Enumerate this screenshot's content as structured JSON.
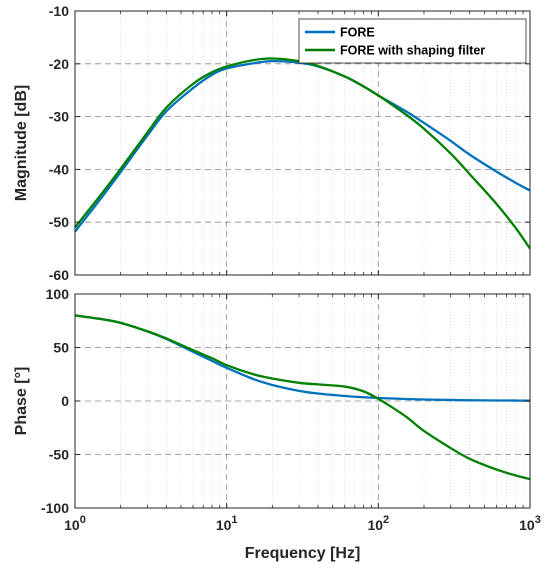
{
  "chart_data": {
    "type": "line",
    "xscale": "log",
    "xlabel": "Frequency [Hz]",
    "xlim": [
      1,
      1000
    ],
    "x_tick_labels": [
      {
        "base": "10",
        "exp": "0"
      },
      {
        "base": "10",
        "exp": "1"
      },
      {
        "base": "10",
        "exp": "2"
      },
      {
        "base": "10",
        "exp": "3"
      }
    ],
    "grid": true,
    "colors": {
      "fore": "#0072BD",
      "fore_filter": "#008000"
    },
    "legend": {
      "placement": "top-right",
      "entries": [
        "FORE",
        "FORE with shaping filter"
      ]
    },
    "panels": [
      {
        "id": "magnitude",
        "ylabel": "Magnitude [dB]",
        "ylim": [
          -60,
          -10
        ],
        "y_ticks": [
          -60,
          -50,
          -40,
          -30,
          -20,
          -10
        ],
        "series": [
          {
            "name": "FORE",
            "x": [
              1,
              1.5,
              2,
              3,
              4,
              6,
              8,
              10,
              15,
              20,
              30,
              40,
              60,
              80,
              100,
              150,
              200,
              300,
              400,
              600,
              800,
              1000
            ],
            "y": [
              -51.8,
              -45.3,
              -40.5,
              -33.6,
              -29.0,
              -24.6,
              -22.1,
              -20.9,
              -19.9,
              -19.5,
              -19.8,
              -20.5,
              -22.4,
              -24.3,
              -26.0,
              -28.9,
              -31.2,
              -34.6,
              -37.2,
              -40.4,
              -42.5,
              -44.0
            ]
          },
          {
            "name": "FORE with shaping filter",
            "x": [
              1,
              1.5,
              2,
              3,
              4,
              6,
              8,
              10,
              15,
              20,
              30,
              40,
              60,
              80,
              100,
              150,
              200,
              300,
              400,
              600,
              800,
              1000
            ],
            "y": [
              -51.0,
              -44.6,
              -39.9,
              -33.0,
              -28.3,
              -23.8,
              -21.6,
              -20.5,
              -19.3,
              -19.0,
              -19.5,
              -20.4,
              -22.4,
              -24.3,
              -26.0,
              -29.5,
              -32.3,
              -37.0,
              -40.9,
              -46.5,
              -51.0,
              -55.0
            ]
          }
        ]
      },
      {
        "id": "phase",
        "ylabel": "Phase [°]",
        "ylim": [
          -100,
          100
        ],
        "y_ticks": [
          -100,
          -50,
          0,
          50,
          100
        ],
        "series": [
          {
            "name": "FORE",
            "x": [
              1,
              1.5,
              2,
              3,
              4,
              6,
              8,
              10,
              15,
              20,
              30,
              40,
              60,
              80,
              100,
              150,
              200,
              300,
              400,
              600,
              800,
              1000
            ],
            "y": [
              80.0,
              76.5,
              73.0,
              65.0,
              58.0,
              46.0,
              37.5,
              31.0,
              20.5,
              15.0,
              9.5,
              7.0,
              4.7,
              3.5,
              2.8,
              1.9,
              1.4,
              1.0,
              0.7,
              0.5,
              0.4,
              0.3
            ]
          },
          {
            "name": "FORE with shaping filter",
            "x": [
              1,
              1.5,
              2,
              3,
              4,
              6,
              8,
              10,
              15,
              20,
              30,
              40,
              60,
              80,
              100,
              150,
              200,
              300,
              400,
              600,
              800,
              1000
            ],
            "y": [
              80.0,
              76.5,
              73.0,
              65.2,
              58.5,
              47.5,
              40.0,
              33.5,
              25.0,
              21.0,
              17.0,
              15.5,
              13.5,
              9.0,
              2.0,
              -14.0,
              -28.0,
              -44.0,
              -54.0,
              -64.0,
              -69.5,
              -73.0
            ]
          }
        ]
      }
    ]
  }
}
